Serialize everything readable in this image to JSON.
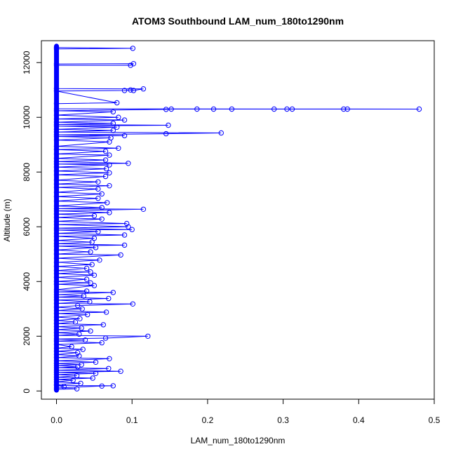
{
  "chart_data": {
    "type": "scatter",
    "title": "ATOM3 Southbound LAM_num_180to1290nm",
    "xlabel": "LAM_num_180to1290nm",
    "ylabel": "Altitude (m)",
    "xlim": [
      -0.02,
      0.5
    ],
    "ylim": [
      -300,
      12800
    ],
    "xticks": [
      0.0,
      0.1,
      0.2,
      0.3,
      0.4,
      0.5
    ],
    "xtick_labels": [
      "0.0",
      "0.1",
      "0.2",
      "0.3",
      "0.4",
      "0.5"
    ],
    "yticks": [
      0,
      2000,
      4000,
      6000,
      8000,
      10000,
      12000
    ],
    "ytick_labels": [
      "0",
      "2000",
      "4000",
      "6000",
      "8000",
      "10000",
      "12000"
    ],
    "grid": false,
    "legend": "none",
    "colors": {
      "series": "#0000ff",
      "axis": "#000000"
    },
    "marker": "open-circle",
    "series": [
      {
        "points": [
          [
            0.0,
            60
          ],
          [
            0.027,
            80
          ],
          [
            0.0,
            110
          ],
          [
            0.06,
            180
          ],
          [
            0.075,
            190
          ],
          [
            0.0,
            200
          ],
          [
            0.01,
            160
          ],
          [
            0.0,
            230
          ],
          [
            0.032,
            280
          ],
          [
            0.0,
            330
          ],
          [
            0.022,
            390
          ],
          [
            0.0,
            420
          ],
          [
            0.048,
            470
          ],
          [
            0.0,
            500
          ],
          [
            0.027,
            560
          ],
          [
            0.0,
            600
          ],
          [
            0.052,
            640
          ],
          [
            0.0,
            680
          ],
          [
            0.085,
            720
          ],
          [
            0.0,
            760
          ],
          [
            0.069,
            820
          ],
          [
            0.0,
            850
          ],
          [
            0.028,
            880
          ],
          [
            0.0,
            930
          ],
          [
            0.033,
            960
          ],
          [
            0.0,
            1000
          ],
          [
            0.052,
            1050
          ],
          [
            0.0,
            1100
          ],
          [
            0.07,
            1180
          ],
          [
            0.0,
            1220
          ],
          [
            0.03,
            1280
          ],
          [
            0.0,
            1330
          ],
          [
            0.028,
            1400
          ],
          [
            0.0,
            1450
          ],
          [
            0.035,
            1520
          ],
          [
            0.0,
            1560
          ],
          [
            0.02,
            1620
          ],
          [
            0.0,
            1700
          ],
          [
            0.06,
            1760
          ],
          [
            0.0,
            1820
          ],
          [
            0.038,
            1860
          ],
          [
            0.0,
            1900
          ],
          [
            0.065,
            1930
          ],
          [
            0.121,
            2000
          ],
          [
            0.0,
            2030
          ],
          [
            0.03,
            2080
          ],
          [
            0.0,
            2130
          ],
          [
            0.045,
            2190
          ],
          [
            0.0,
            2240
          ],
          [
            0.033,
            2300
          ],
          [
            0.0,
            2350
          ],
          [
            0.062,
            2420
          ],
          [
            0.0,
            2460
          ],
          [
            0.025,
            2520
          ],
          [
            0.0,
            2580
          ],
          [
            0.031,
            2640
          ],
          [
            0.0,
            2700
          ],
          [
            0.041,
            2790
          ],
          [
            0.0,
            2830
          ],
          [
            0.066,
            2880
          ],
          [
            0.0,
            2940
          ],
          [
            0.034,
            3000
          ],
          [
            0.0,
            3060
          ],
          [
            0.028,
            3120
          ],
          [
            0.101,
            3180
          ],
          [
            0.0,
            3200
          ],
          [
            0.044,
            3260
          ],
          [
            0.0,
            3320
          ],
          [
            0.069,
            3380
          ],
          [
            0.0,
            3430
          ],
          [
            0.036,
            3470
          ],
          [
            0.0,
            3520
          ],
          [
            0.075,
            3600
          ],
          [
            0.0,
            3620
          ],
          [
            0.04,
            3650
          ],
          [
            0.0,
            3700
          ],
          [
            0.05,
            3850
          ],
          [
            0.0,
            3900
          ],
          [
            0.045,
            3950
          ],
          [
            0.0,
            4000
          ],
          [
            0.04,
            4080
          ],
          [
            0.0,
            4150
          ],
          [
            0.05,
            4230
          ],
          [
            0.0,
            4290
          ],
          [
            0.045,
            4350
          ],
          [
            0.0,
            4400
          ],
          [
            0.04,
            4480
          ],
          [
            0.0,
            4550
          ],
          [
            0.047,
            4620
          ],
          [
            0.0,
            4700
          ],
          [
            0.057,
            4780
          ],
          [
            0.0,
            4850
          ],
          [
            0.085,
            4970
          ],
          [
            0.0,
            5000
          ],
          [
            0.045,
            5080
          ],
          [
            0.0,
            5150
          ],
          [
            0.052,
            5240
          ],
          [
            0.0,
            5290
          ],
          [
            0.09,
            5330
          ],
          [
            0.0,
            5380
          ],
          [
            0.047,
            5440
          ],
          [
            0.0,
            5500
          ],
          [
            0.05,
            5580
          ],
          [
            0.0,
            5650
          ],
          [
            0.09,
            5700
          ],
          [
            0.0,
            5760
          ],
          [
            0.055,
            5820
          ],
          [
            0.0,
            5880
          ],
          [
            0.1,
            5900
          ],
          [
            0.0,
            5950
          ],
          [
            0.095,
            6000
          ],
          [
            0.0,
            6080
          ],
          [
            0.093,
            6120
          ],
          [
            0.0,
            6200
          ],
          [
            0.06,
            6280
          ],
          [
            0.0,
            6340
          ],
          [
            0.05,
            6400
          ],
          [
            0.0,
            6460
          ],
          [
            0.07,
            6520
          ],
          [
            0.0,
            6580
          ],
          [
            0.115,
            6640
          ],
          [
            0.0,
            6660
          ],
          [
            0.06,
            6700
          ],
          [
            0.0,
            6760
          ],
          [
            0.067,
            6880
          ],
          [
            0.0,
            6940
          ],
          [
            0.055,
            7040
          ],
          [
            0.0,
            7100
          ],
          [
            0.06,
            7200
          ],
          [
            0.0,
            7260
          ],
          [
            0.055,
            7380
          ],
          [
            0.0,
            7440
          ],
          [
            0.07,
            7500
          ],
          [
            0.0,
            7560
          ],
          [
            0.055,
            7640
          ],
          [
            0.0,
            7700
          ],
          [
            0.065,
            7840
          ],
          [
            0.0,
            7900
          ],
          [
            0.07,
            7970
          ],
          [
            0.0,
            8040
          ],
          [
            0.066,
            8120
          ],
          [
            0.0,
            8180
          ],
          [
            0.07,
            8260
          ],
          [
            0.0,
            8290
          ],
          [
            0.095,
            8320
          ],
          [
            0.0,
            8380
          ],
          [
            0.065,
            8440
          ],
          [
            0.0,
            8500
          ],
          [
            0.07,
            8620
          ],
          [
            0.0,
            8660
          ],
          [
            0.065,
            8760
          ],
          [
            0.0,
            8820
          ],
          [
            0.082,
            8870
          ],
          [
            0.0,
            8940
          ],
          [
            0.07,
            9100
          ],
          [
            0.0,
            9170
          ],
          [
            0.072,
            9250
          ],
          [
            0.0,
            9300
          ],
          [
            0.09,
            9330
          ],
          [
            0.0,
            9360
          ],
          [
            0.145,
            9400
          ],
          [
            0.218,
            9430
          ],
          [
            0.0,
            9460
          ],
          [
            0.075,
            9520
          ],
          [
            0.0,
            9560
          ],
          [
            0.08,
            9640
          ],
          [
            0.0,
            9680
          ],
          [
            0.148,
            9710
          ],
          [
            0.0,
            9740
          ],
          [
            0.075,
            9780
          ],
          [
            0.0,
            9820
          ],
          [
            0.09,
            9900
          ],
          [
            0.0,
            9940
          ],
          [
            0.082,
            10000
          ],
          [
            0.0,
            10080
          ],
          [
            0.075,
            10200
          ],
          [
            0.0,
            10240
          ],
          [
            0.145,
            10290
          ],
          [
            0.152,
            10300
          ],
          [
            0.186,
            10300
          ],
          [
            0.208,
            10300
          ],
          [
            0.232,
            10300
          ],
          [
            0.288,
            10300
          ],
          [
            0.305,
            10300
          ],
          [
            0.312,
            10300
          ],
          [
            0.38,
            10300
          ],
          [
            0.385,
            10300
          ],
          [
            0.48,
            10300
          ],
          [
            0.0,
            10310
          ],
          [
            0.0,
            10500
          ],
          [
            0.08,
            10530
          ],
          [
            0.0,
            10960
          ],
          [
            0.09,
            10980
          ],
          [
            0.098,
            11000
          ],
          [
            0.102,
            10980
          ],
          [
            0.115,
            11040
          ],
          [
            0.0,
            11050
          ],
          [
            0.0,
            11900
          ],
          [
            0.098,
            11900
          ],
          [
            0.102,
            11960
          ],
          [
            0.0,
            11950
          ],
          [
            0.0,
            12500
          ],
          [
            0.101,
            12520
          ],
          [
            0.0,
            12550
          ]
        ]
      }
    ]
  }
}
